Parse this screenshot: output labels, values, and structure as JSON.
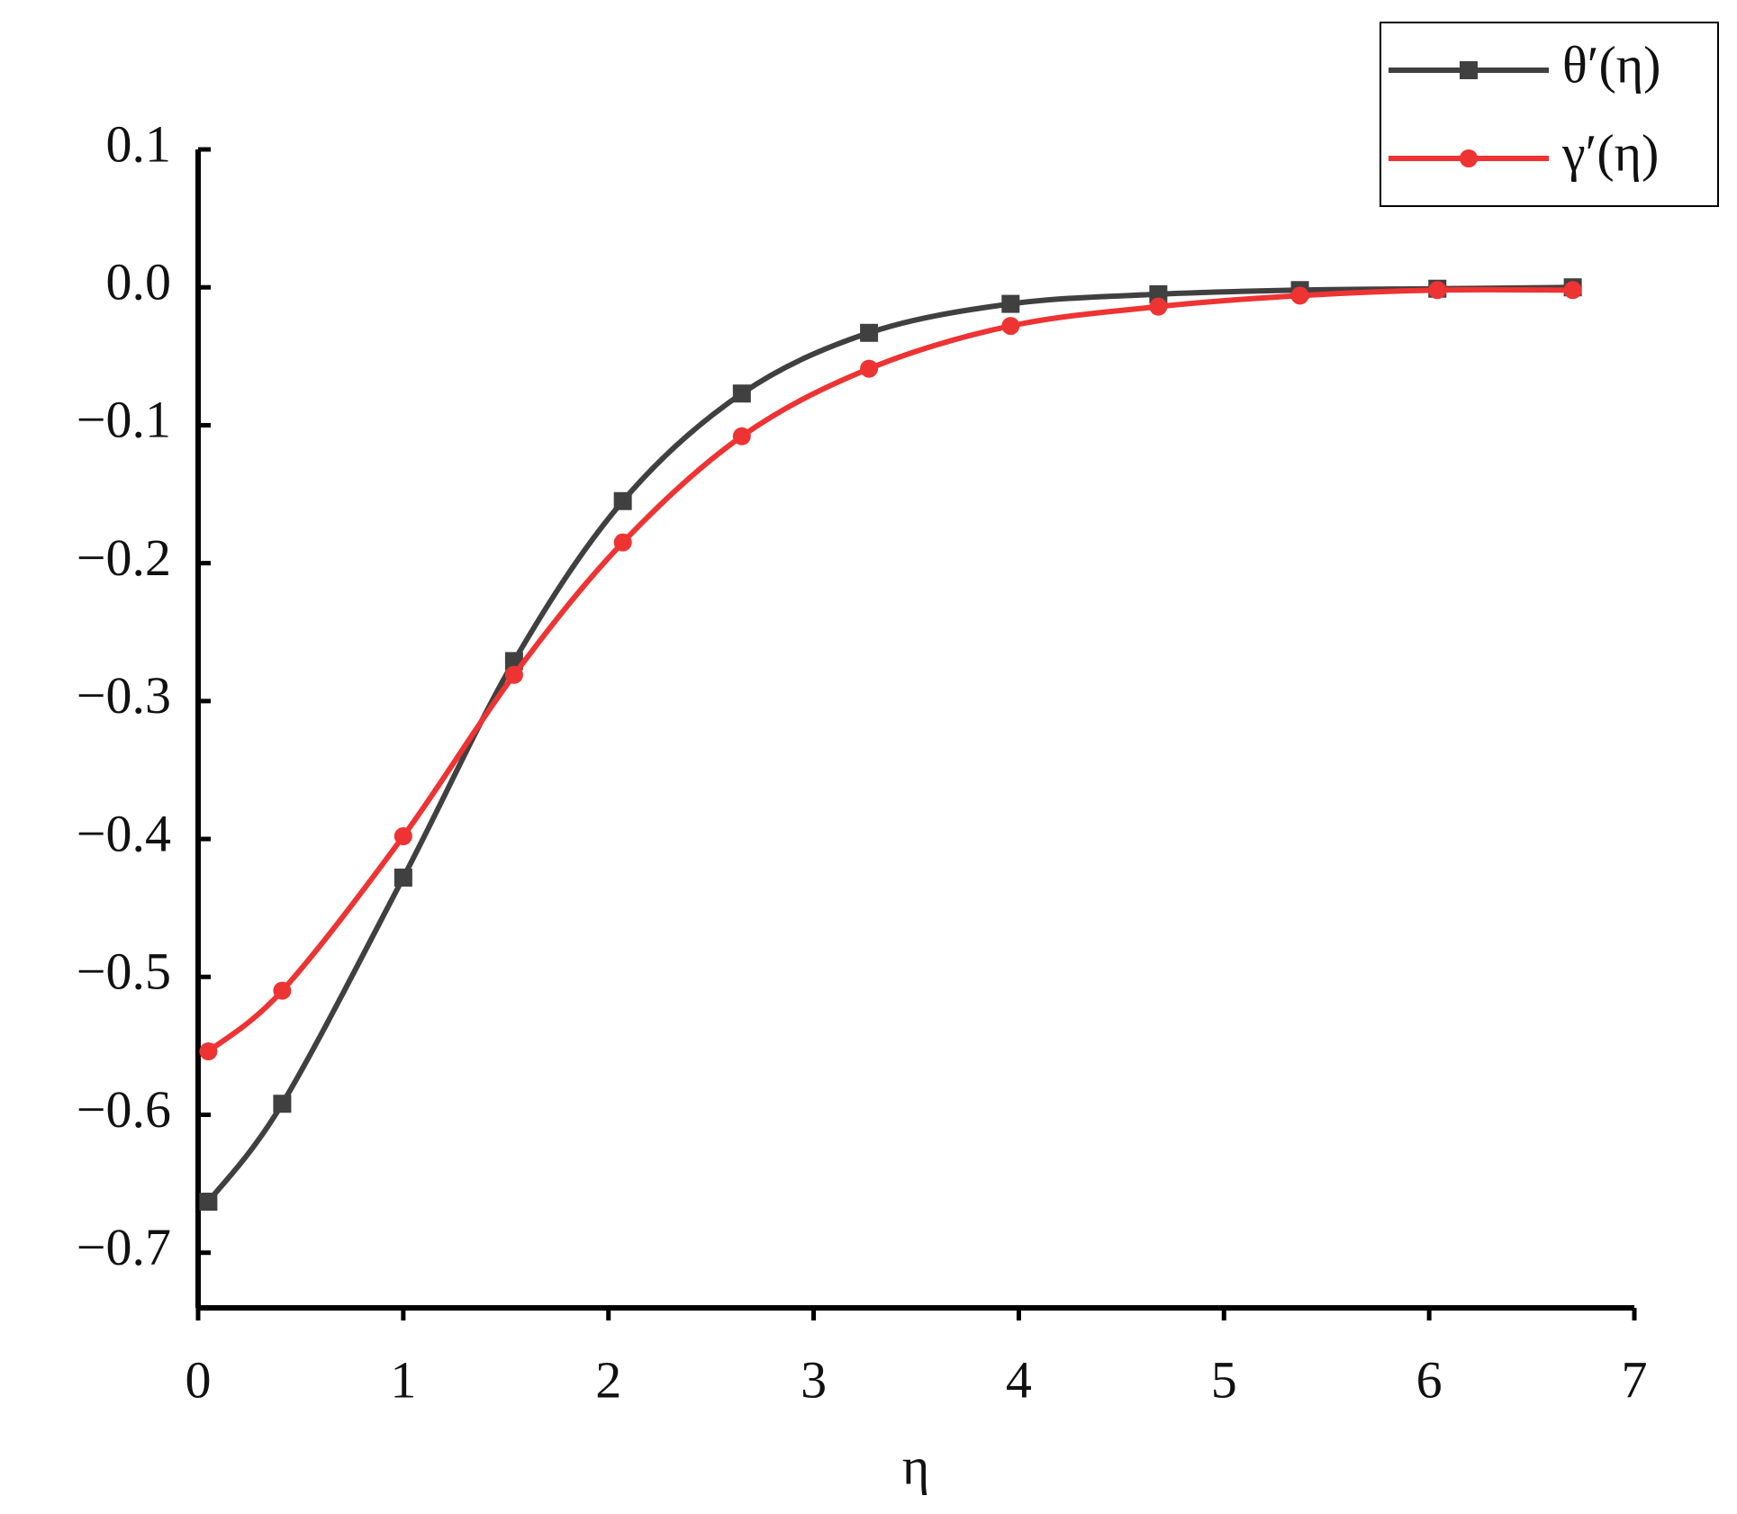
{
  "chart_data": {
    "type": "line",
    "x_label": "η",
    "xlim": [
      0,
      7
    ],
    "xticks": [
      0,
      1,
      2,
      3,
      4,
      5,
      6,
      7
    ],
    "ylim": [
      -0.74,
      0.1
    ],
    "yticks": [
      {
        "value": 0.1,
        "label": "0.1"
      },
      {
        "value": 0,
        "label": "0.0"
      },
      {
        "value": -0.1,
        "label": "−0.1"
      },
      {
        "value": -0.2,
        "label": "−0.2"
      },
      {
        "value": -0.3,
        "label": "−0.3"
      },
      {
        "value": -0.4,
        "label": "−0.4"
      },
      {
        "value": -0.5,
        "label": "−0.5"
      },
      {
        "value": -0.6,
        "label": "−0.6"
      },
      {
        "value": -0.7,
        "label": "−0.7"
      }
    ],
    "legend": "upper right",
    "series": [
      {
        "name": "θ′(η)",
        "color": "#404040",
        "marker": "square",
        "x": [
          0.05,
          0.41,
          1.0,
          1.54,
          2.07,
          2.65,
          3.27,
          3.96,
          4.68,
          5.37,
          6.04,
          6.7
        ],
        "values": [
          -0.663,
          -0.592,
          -0.428,
          -0.271,
          -0.155,
          -0.077,
          -0.033,
          -0.012,
          -0.005,
          -0.002,
          -0.001,
          0
        ]
      },
      {
        "name": "γ′(η)",
        "color": "#ee3333",
        "marker": "circle",
        "x": [
          0.05,
          0.41,
          1.0,
          1.54,
          2.07,
          2.65,
          3.27,
          3.96,
          4.68,
          5.37,
          6.04,
          6.7
        ],
        "values": [
          -0.554,
          -0.51,
          -0.398,
          -0.281,
          -0.185,
          -0.108,
          -0.059,
          -0.028,
          -0.014,
          -0.006,
          -0.002,
          -0.002
        ]
      }
    ]
  }
}
